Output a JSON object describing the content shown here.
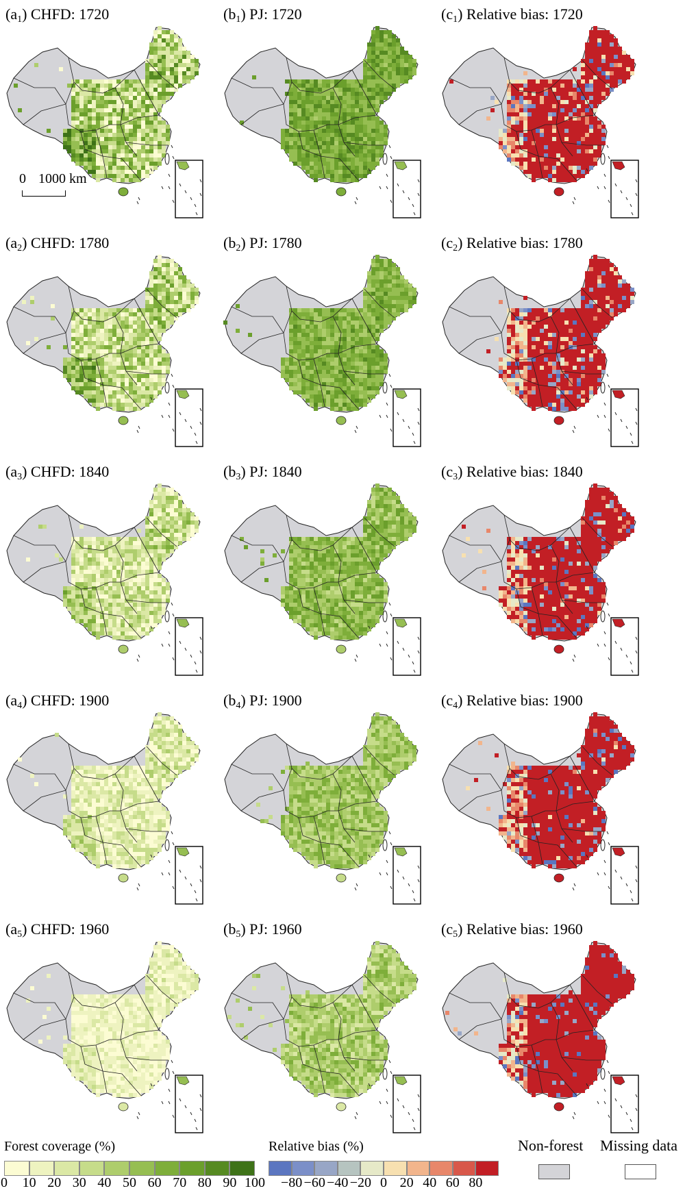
{
  "rows": [
    {
      "a": {
        "prefix": "(a",
        "sub": "1",
        "text": ") CHFD: 1720"
      },
      "b": {
        "prefix": "(b",
        "sub": "1",
        "text": ") PJ: 1720"
      },
      "c": {
        "prefix": "(c",
        "sub": "1",
        "text": ") Relative bias: 1720"
      }
    },
    {
      "a": {
        "prefix": "(a",
        "sub": "2",
        "text": ") CHFD: 1780"
      },
      "b": {
        "prefix": "(b",
        "sub": "2",
        "text": ") PJ: 1780"
      },
      "c": {
        "prefix": "(c",
        "sub": "2",
        "text": ") Relative bias: 1780"
      }
    },
    {
      "a": {
        "prefix": "(a",
        "sub": "3",
        "text": ") CHFD: 1840"
      },
      "b": {
        "prefix": "(b",
        "sub": "3",
        "text": ") PJ: 1840"
      },
      "c": {
        "prefix": "(c",
        "sub": "3",
        "text": ") Relative bias: 1840"
      }
    },
    {
      "a": {
        "prefix": "(a",
        "sub": "4",
        "text": ") CHFD: 1900"
      },
      "b": {
        "prefix": "(b",
        "sub": "4",
        "text": ") PJ: 1900"
      },
      "c": {
        "prefix": "(c",
        "sub": "4",
        "text": ") Relative bias: 1900"
      }
    },
    {
      "a": {
        "prefix": "(a",
        "sub": "5",
        "text": ") CHFD: 1960"
      },
      "b": {
        "prefix": "(b",
        "sub": "5",
        "text": ") PJ: 1960"
      },
      "c": {
        "prefix": "(c",
        "sub": "5",
        "text": ") Relative bias: 1960"
      }
    }
  ],
  "scale_bar": {
    "zero": "0",
    "distance": "1000 km"
  },
  "legend": {
    "forest_title": "Forest coverage (%)",
    "forest_ticks": [
      "0",
      "10",
      "20",
      "30",
      "40",
      "50",
      "60",
      "70",
      "80",
      "90",
      "100"
    ],
    "forest_colors": [
      "#fcfcd3",
      "#eef3c0",
      "#dbe8a5",
      "#c6dc8a",
      "#aecd6c",
      "#96be52",
      "#7eae3a",
      "#6b9f2c",
      "#568a22",
      "#3e7218"
    ],
    "bias_title": "Relative bias (%)",
    "bias_ticks": [
      "−80",
      "−60",
      "−40",
      "−20",
      "0",
      "20",
      "40",
      "60",
      "80"
    ],
    "bias_colors": [
      "#5b76c0",
      "#7b8fc8",
      "#98a6c6",
      "#b6c4c0",
      "#e6e9c8",
      "#f7e0b0",
      "#f2b58c",
      "#e8876a",
      "#d8584a",
      "#c21f25"
    ],
    "nonforest_label": "Non-forest",
    "nonforest_color": "#d4d4d8",
    "missing_label": "Missing data",
    "missing_color": "#ffffff"
  },
  "map_colors": {
    "background_land": "#d4d4d8",
    "border": "#222222"
  }
}
